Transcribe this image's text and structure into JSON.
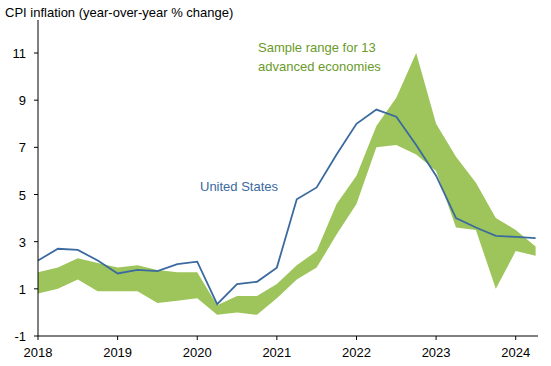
{
  "chart_data": {
    "type": "line",
    "title": "CPI inflation (year-over-year % change)",
    "x": [
      2018.0,
      2018.25,
      2018.5,
      2018.75,
      2019.0,
      2019.25,
      2019.5,
      2019.75,
      2020.0,
      2020.25,
      2020.5,
      2020.75,
      2021.0,
      2021.25,
      2021.5,
      2021.75,
      2022.0,
      2022.25,
      2022.5,
      2022.75,
      2023.0,
      2023.25,
      2023.5,
      2023.75,
      2024.0,
      2024.25
    ],
    "series": [
      {
        "name": "Sample range for 13 advanced economies",
        "type": "range",
        "color": "#9dc55b",
        "lower": [
          0.8,
          1.0,
          1.4,
          0.9,
          0.9,
          0.9,
          0.4,
          0.5,
          0.6,
          -0.1,
          0.0,
          -0.1,
          0.6,
          1.4,
          1.9,
          3.3,
          4.6,
          7.0,
          7.1,
          6.7,
          6.0,
          3.6,
          3.5,
          1.0,
          2.6,
          2.4
        ],
        "upper": [
          1.7,
          1.9,
          2.3,
          2.1,
          1.9,
          2.0,
          1.8,
          1.7,
          1.7,
          0.3,
          0.7,
          0.7,
          1.2,
          2.0,
          2.6,
          4.6,
          5.8,
          7.9,
          9.1,
          11.0,
          8.0,
          6.6,
          5.5,
          4.0,
          3.5,
          2.8
        ]
      },
      {
        "name": "United States",
        "type": "line",
        "color": "#3b6a9e",
        "values": [
          2.2,
          2.7,
          2.65,
          2.2,
          1.65,
          1.8,
          1.75,
          2.05,
          2.15,
          0.35,
          1.2,
          1.3,
          1.9,
          4.8,
          5.3,
          6.7,
          8.0,
          8.6,
          8.3,
          7.1,
          5.8,
          4.0,
          3.6,
          3.25,
          3.2,
          3.15
        ]
      }
    ],
    "xlim": [
      2018,
      2024.28
    ],
    "xticks": [
      2018,
      2019,
      2020,
      2021,
      2022,
      2023,
      2024
    ],
    "ylim": [
      -1,
      12.4
    ],
    "yticks": [
      -1,
      1,
      3,
      5,
      7,
      9,
      11
    ],
    "grid": false
  }
}
